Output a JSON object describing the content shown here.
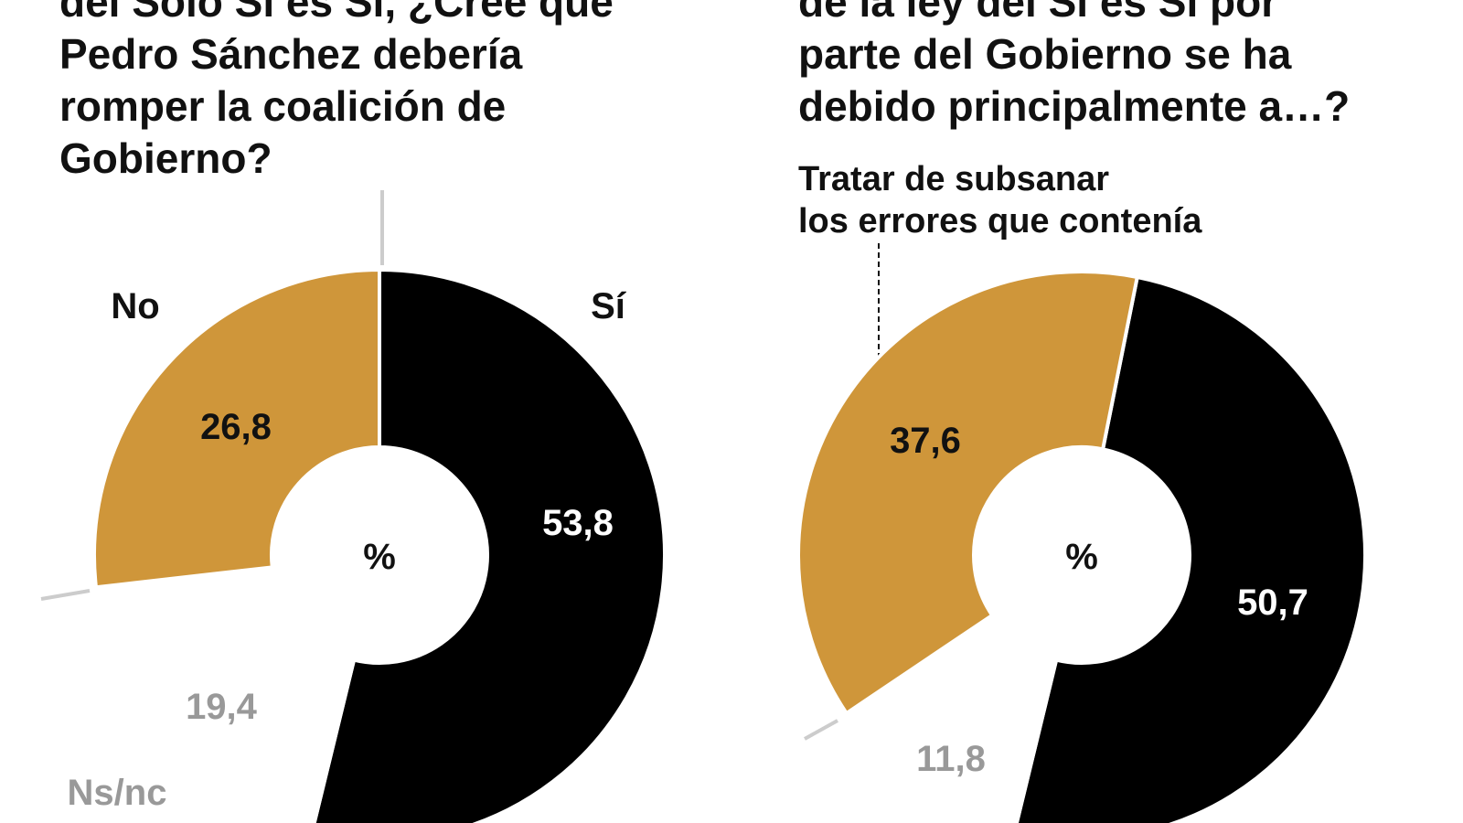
{
  "chart_data": [
    {
      "type": "pie",
      "variant": "donut",
      "title_lines": [
        "del Solo Sí es Sí, ¿Cree que",
        "Pedro Sánchez debería",
        "romper la coalición de",
        "Gobierno?"
      ],
      "center_label": "%",
      "start_angle_deg": 0,
      "direction": "clockwise",
      "slices": [
        {
          "name": "Sí",
          "value": 53.8,
          "label": "53,8",
          "color": "#000000",
          "label_color": "#ffffff"
        },
        {
          "name": "Ns/nc",
          "value": 19.4,
          "label": "19,4",
          "color": "#ffffff",
          "label_color": "#999999"
        },
        {
          "name": "No",
          "value": 26.8,
          "label": "26,8",
          "color": "#CF963A",
          "label_color": "#111111"
        }
      ]
    },
    {
      "type": "pie",
      "variant": "donut",
      "title_lines": [
        "de la ley del Sí es Sí por",
        "parte del Gobierno se ha",
        "debido principalmente a…?"
      ],
      "center_label": "%",
      "start_angle_deg": 11.3,
      "direction": "clockwise",
      "annotation_lines": [
        "Tratar de subsanar",
        "los errores que contenía"
      ],
      "slices": [
        {
          "value": 50.7,
          "label": "50,7",
          "color": "#000000",
          "label_color": "#ffffff"
        },
        {
          "value": 11.8,
          "label": "11,8",
          "color": "#ffffff",
          "label_color": "#999999"
        },
        {
          "name": "Tratar de subsanar los errores que contenía",
          "value": 37.6,
          "label": "37,6",
          "color": "#CF963A",
          "label_color": "#111111"
        }
      ]
    }
  ],
  "colors": {
    "accent": "#CF963A",
    "dark": "#000000",
    "muted": "#999999",
    "tick": "#cccccc"
  }
}
